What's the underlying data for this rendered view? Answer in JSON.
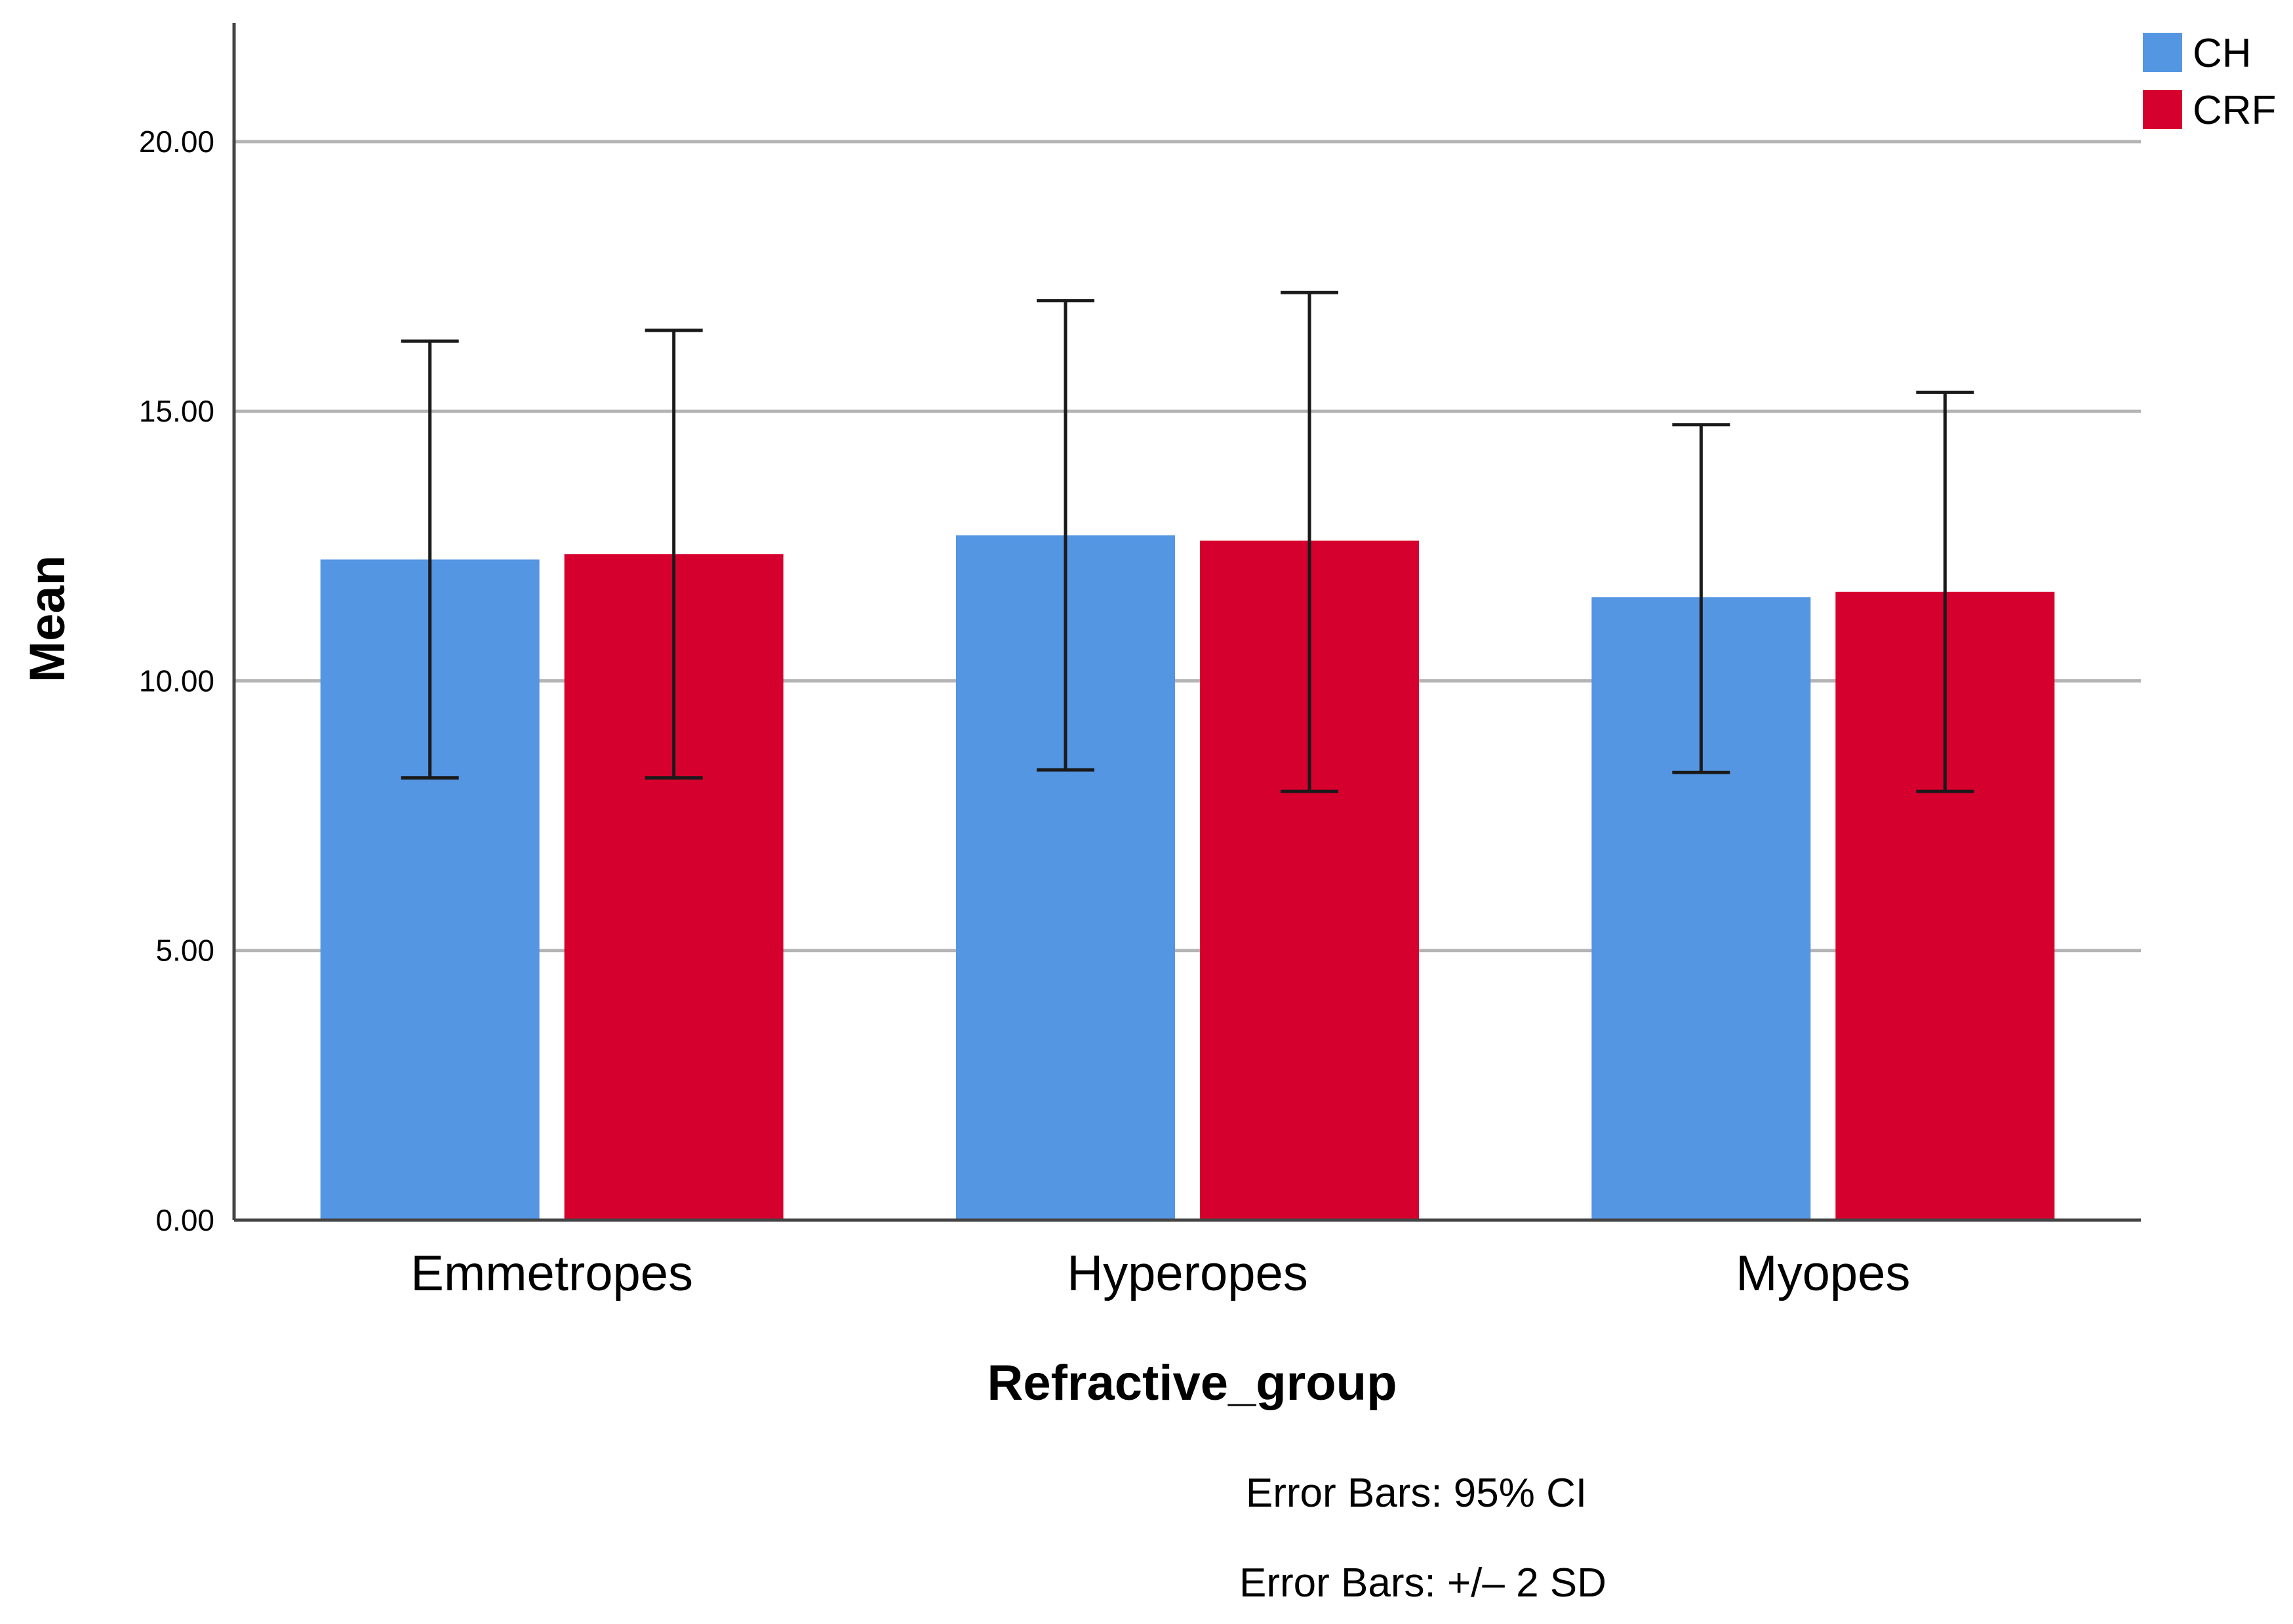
{
  "chart_data": {
    "type": "bar",
    "xlabel": "Refractive_group",
    "ylabel": "Mean",
    "ylim": [
      0,
      22.2
    ],
    "yticks": [
      0,
      5,
      10,
      15,
      20
    ],
    "ytick_labels": [
      "0.00",
      "5.00",
      "10.00",
      "15.00",
      "20.00"
    ],
    "grid": true,
    "legend_position": "top-right",
    "categories": [
      "Emmetropes",
      "Hyperopes",
      "Myopes"
    ],
    "series": [
      {
        "name": "CH",
        "color": "#5596E3",
        "values": [
          12.25,
          12.7,
          11.55
        ],
        "error_low": [
          8.2,
          8.35,
          8.3
        ],
        "error_high": [
          16.3,
          17.05,
          14.75
        ]
      },
      {
        "name": "CRF",
        "color": "#D6002F",
        "values": [
          12.35,
          12.6,
          11.65
        ],
        "error_low": [
          8.2,
          7.95,
          7.95
        ],
        "error_high": [
          16.5,
          17.2,
          15.35
        ]
      }
    ],
    "footnotes": [
      "Error Bars: 95% CI",
      "Error Bars: +/– 2 SD"
    ]
  }
}
